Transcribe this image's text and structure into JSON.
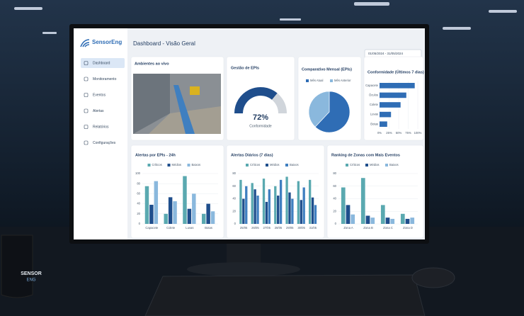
{
  "sidebar": {
    "logo": "SensorEng",
    "nav": [
      "Dashboard",
      "Monitoramento",
      "Eventos",
      "Alertas",
      "Relatórios",
      "Configurações"
    ]
  },
  "header": {
    "title": "Dashboard - Visão Geral",
    "date_range": "01/05/2024 - 31/05/2024"
  },
  "live": {
    "title": "Ambientes ao vivo"
  },
  "gauge": {
    "type": "gauge",
    "title": "Gestão de EPIs",
    "value": 72,
    "value_label": "72%",
    "label": "Conformidade",
    "range": [
      0,
      100
    ],
    "color": "#1f4e8c"
  },
  "pie": {
    "type": "pie",
    "title": "Comparativo Mensal (EPIs)",
    "categories": [
      "Mês Atual",
      "Mês Anterior"
    ],
    "values": [
      62,
      38
    ],
    "colors": [
      "#2f6db5",
      "#8ab8dd"
    ]
  },
  "conformity": {
    "type": "barh",
    "title": "Conformidade (Últimos 7 dias)",
    "categories": [
      "Capacete",
      "Óculos",
      "Colete",
      "Luvas",
      "Botas"
    ],
    "values": [
      92,
      70,
      55,
      30,
      20
    ],
    "color": "#2f6db5",
    "xlim": [
      0,
      100
    ],
    "xticks": [
      {
        "value": 0,
        "label": "0%"
      },
      {
        "value": 25,
        "label": "25%"
      },
      {
        "value": 50,
        "label": "50%"
      },
      {
        "value": 75,
        "label": "75%"
      },
      {
        "value": 100,
        "label": "100%"
      }
    ]
  },
  "alerts_epi": {
    "type": "bar",
    "title": "Alertas por EPIs - 24h",
    "categories": [
      "Capacete",
      "Colete",
      "Luvas",
      "Botas"
    ],
    "series": [
      {
        "name": "Críticos",
        "color": "#5aa9b0",
        "values": [
          75,
          20,
          95,
          20
        ]
      },
      {
        "name": "Médios",
        "color": "#1f4e8c",
        "values": [
          38,
          53,
          30,
          40
        ]
      },
      {
        "name": "Baixos",
        "color": "#8ab8dd",
        "values": [
          85,
          45,
          60,
          25
        ]
      }
    ],
    "ylim": [
      0,
      100
    ],
    "yticks": [
      0,
      20,
      40,
      60,
      80,
      100
    ]
  },
  "alerts_daily": {
    "type": "bar",
    "title": "Alertas Diários (7 dias)",
    "categories": [
      "25/05",
      "26/05",
      "27/05",
      "28/05",
      "29/05",
      "30/05",
      "31/05"
    ],
    "series": [
      {
        "name": "Críticos",
        "color": "#5aa9b0",
        "values": [
          70,
          65,
          72,
          60,
          75,
          68,
          70
        ]
      },
      {
        "name": "Médios",
        "color": "#1f4e8c",
        "values": [
          40,
          55,
          35,
          45,
          50,
          38,
          42
        ]
      },
      {
        "name": "Baixos",
        "color": "#3f7fc0",
        "values": [
          60,
          45,
          55,
          70,
          40,
          58,
          30
        ]
      }
    ],
    "ylim": [
      0,
      80
    ],
    "yticks": [
      0,
      20,
      40,
      60,
      80
    ]
  },
  "ranking": {
    "type": "bar",
    "title": "Ranking de Zonas com Mais Eventos",
    "categories": [
      "Zona A",
      "Zona B",
      "Zona C",
      "Zona D"
    ],
    "series": [
      {
        "name": "Críticos",
        "color": "#5aa9b0",
        "values": [
          58,
          73,
          30,
          16
        ]
      },
      {
        "name": "Médios",
        "color": "#1f4e8c",
        "values": [
          30,
          13,
          10,
          8
        ]
      },
      {
        "name": "Baixos",
        "color": "#8ab8dd",
        "values": [
          15,
          10,
          8,
          10
        ]
      }
    ],
    "ylim": [
      0,
      80
    ],
    "yticks": [
      0,
      20,
      40,
      60,
      80
    ]
  },
  "mug": {
    "lines": [
      "SENSOR",
      "ENG"
    ]
  }
}
